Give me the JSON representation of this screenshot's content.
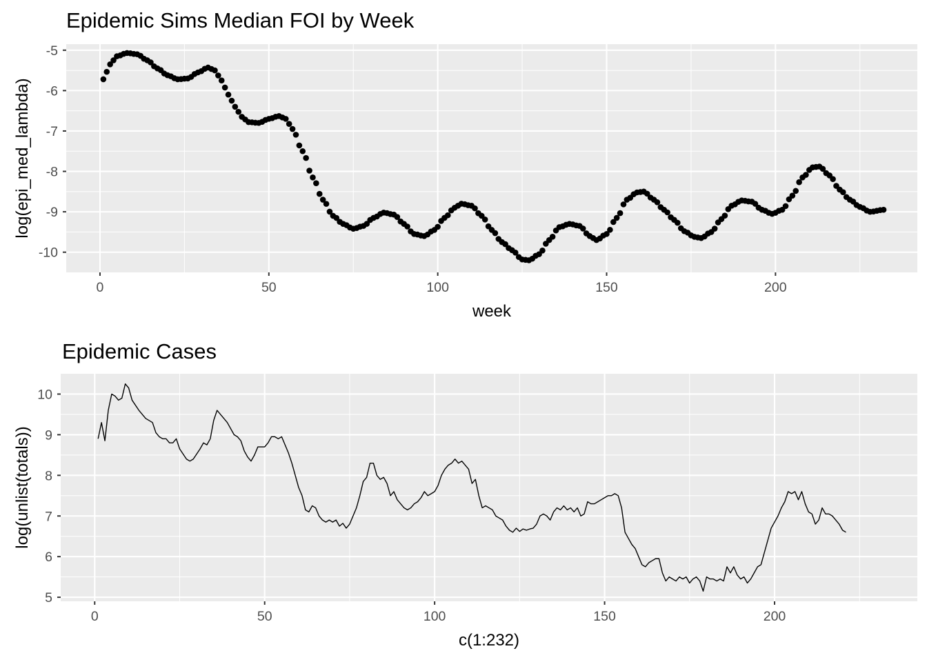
{
  "chart_data": [
    {
      "type": "scatter",
      "title": "Epidemic Sims Median FOI by Week",
      "xlabel": "week",
      "ylabel": "log(epi_med_lambda)",
      "xlim": [
        -10,
        242
      ],
      "ylim": [
        -10.5,
        -4.85
      ],
      "xticks": [
        0,
        50,
        100,
        150,
        200
      ],
      "yticks": [
        -10,
        -9,
        -8,
        -7,
        -6,
        -5
      ],
      "grid": true,
      "point_color": "#000000",
      "x_range": [
        1,
        232
      ],
      "keyframes": [
        [
          1,
          -5.72
        ],
        [
          3,
          -5.35
        ],
        [
          5,
          -5.15
        ],
        [
          8,
          -5.07
        ],
        [
          11,
          -5.1
        ],
        [
          14,
          -5.25
        ],
        [
          17,
          -5.45
        ],
        [
          20,
          -5.62
        ],
        [
          23,
          -5.72
        ],
        [
          26,
          -5.7
        ],
        [
          29,
          -5.55
        ],
        [
          32,
          -5.43
        ],
        [
          34,
          -5.5
        ],
        [
          36,
          -5.75
        ],
        [
          38,
          -6.1
        ],
        [
          40,
          -6.4
        ],
        [
          42,
          -6.65
        ],
        [
          44,
          -6.78
        ],
        [
          47,
          -6.8
        ],
        [
          50,
          -6.7
        ],
        [
          53,
          -6.63
        ],
        [
          55,
          -6.7
        ],
        [
          57,
          -6.95
        ],
        [
          60,
          -7.5
        ],
        [
          63,
          -8.15
        ],
        [
          66,
          -8.7
        ],
        [
          69,
          -9.1
        ],
        [
          72,
          -9.3
        ],
        [
          75,
          -9.42
        ],
        [
          78,
          -9.35
        ],
        [
          81,
          -9.15
        ],
        [
          84,
          -9.02
        ],
        [
          87,
          -9.07
        ],
        [
          90,
          -9.3
        ],
        [
          93,
          -9.55
        ],
        [
          96,
          -9.6
        ],
        [
          99,
          -9.45
        ],
        [
          102,
          -9.15
        ],
        [
          105,
          -8.9
        ],
        [
          107,
          -8.8
        ],
        [
          110,
          -8.85
        ],
        [
          113,
          -9.1
        ],
        [
          116,
          -9.45
        ],
        [
          119,
          -9.75
        ],
        [
          122,
          -9.95
        ],
        [
          125,
          -10.18
        ],
        [
          127,
          -10.2
        ],
        [
          130,
          -10.05
        ],
        [
          133,
          -9.7
        ],
        [
          136,
          -9.38
        ],
        [
          139,
          -9.3
        ],
        [
          142,
          -9.35
        ],
        [
          145,
          -9.6
        ],
        [
          147,
          -9.7
        ],
        [
          150,
          -9.55
        ],
        [
          153,
          -9.15
        ],
        [
          156,
          -8.7
        ],
        [
          159,
          -8.52
        ],
        [
          161,
          -8.5
        ],
        [
          164,
          -8.7
        ],
        [
          167,
          -8.95
        ],
        [
          170,
          -9.2
        ],
        [
          173,
          -9.48
        ],
        [
          176,
          -9.62
        ],
        [
          178,
          -9.65
        ],
        [
          181,
          -9.5
        ],
        [
          184,
          -9.18
        ],
        [
          187,
          -8.85
        ],
        [
          190,
          -8.72
        ],
        [
          193,
          -8.75
        ],
        [
          196,
          -8.95
        ],
        [
          199,
          -9.05
        ],
        [
          202,
          -8.95
        ],
        [
          205,
          -8.6
        ],
        [
          208,
          -8.15
        ],
        [
          211,
          -7.9
        ],
        [
          213,
          -7.88
        ],
        [
          216,
          -8.1
        ],
        [
          219,
          -8.45
        ],
        [
          222,
          -8.7
        ],
        [
          225,
          -8.88
        ],
        [
          228,
          -9.0
        ],
        [
          232,
          -8.95
        ]
      ]
    },
    {
      "type": "line",
      "title": "Epidemic Cases",
      "xlabel": "c(1:232)",
      "ylabel": "log(unlist(totals))",
      "xlim": [
        -10,
        242
      ],
      "ylim": [
        4.9,
        10.5
      ],
      "xticks": [
        0,
        50,
        100,
        150,
        200
      ],
      "yticks": [
        5,
        6,
        7,
        8,
        9,
        10
      ],
      "grid": true,
      "line_color": "#000000",
      "points": [
        [
          1,
          8.9
        ],
        [
          2,
          9.3
        ],
        [
          3,
          8.85
        ],
        [
          4,
          9.6
        ],
        [
          5,
          10.0
        ],
        [
          6,
          9.95
        ],
        [
          7,
          9.85
        ],
        [
          8,
          9.9
        ],
        [
          9,
          10.25
        ],
        [
          10,
          10.15
        ],
        [
          11,
          9.85
        ],
        [
          13,
          9.6
        ],
        [
          15,
          9.4
        ],
        [
          17,
          9.3
        ],
        [
          18,
          9.05
        ],
        [
          19,
          8.95
        ],
        [
          20,
          8.9
        ],
        [
          21,
          8.9
        ],
        [
          22,
          8.8
        ],
        [
          23,
          8.8
        ],
        [
          24,
          8.9
        ],
        [
          25,
          8.65
        ],
        [
          27,
          8.4
        ],
        [
          28,
          8.35
        ],
        [
          29,
          8.4
        ],
        [
          31,
          8.65
        ],
        [
          32,
          8.8
        ],
        [
          33,
          8.75
        ],
        [
          34,
          8.9
        ],
        [
          35,
          9.35
        ],
        [
          36,
          9.6
        ],
        [
          37,
          9.5
        ],
        [
          38,
          9.4
        ],
        [
          39,
          9.3
        ],
        [
          40,
          9.15
        ],
        [
          41,
          9.0
        ],
        [
          42,
          8.95
        ],
        [
          43,
          8.85
        ],
        [
          44,
          8.6
        ],
        [
          45,
          8.45
        ],
        [
          46,
          8.35
        ],
        [
          47,
          8.5
        ],
        [
          48,
          8.7
        ],
        [
          49,
          8.7
        ],
        [
          50,
          8.7
        ],
        [
          51,
          8.8
        ],
        [
          52,
          8.95
        ],
        [
          53,
          8.95
        ],
        [
          54,
          8.9
        ],
        [
          55,
          8.95
        ],
        [
          56,
          8.75
        ],
        [
          57,
          8.55
        ],
        [
          58,
          8.3
        ],
        [
          59,
          8.0
        ],
        [
          60,
          7.7
        ],
        [
          61,
          7.5
        ],
        [
          62,
          7.15
        ],
        [
          63,
          7.1
        ],
        [
          64,
          7.25
        ],
        [
          65,
          7.2
        ],
        [
          66,
          7.0
        ],
        [
          67,
          6.9
        ],
        [
          68,
          6.85
        ],
        [
          69,
          6.9
        ],
        [
          70,
          6.85
        ],
        [
          71,
          6.9
        ],
        [
          72,
          6.75
        ],
        [
          73,
          6.82
        ],
        [
          74,
          6.7
        ],
        [
          75,
          6.8
        ],
        [
          76,
          7.0
        ],
        [
          77,
          7.2
        ],
        [
          78,
          7.5
        ],
        [
          79,
          7.85
        ],
        [
          80,
          7.95
        ],
        [
          81,
          8.3
        ],
        [
          82,
          8.3
        ],
        [
          83,
          8.0
        ],
        [
          84,
          7.9
        ],
        [
          85,
          7.95
        ],
        [
          86,
          7.8
        ],
        [
          87,
          7.5
        ],
        [
          88,
          7.6
        ],
        [
          89,
          7.4
        ],
        [
          90,
          7.3
        ],
        [
          91,
          7.2
        ],
        [
          92,
          7.15
        ],
        [
          93,
          7.2
        ],
        [
          94,
          7.3
        ],
        [
          95,
          7.35
        ],
        [
          96,
          7.45
        ],
        [
          97,
          7.6
        ],
        [
          98,
          7.5
        ],
        [
          99,
          7.55
        ],
        [
          100,
          7.6
        ],
        [
          101,
          7.75
        ],
        [
          102,
          8.0
        ],
        [
          103,
          8.15
        ],
        [
          104,
          8.25
        ],
        [
          105,
          8.3
        ],
        [
          106,
          8.4
        ],
        [
          107,
          8.3
        ],
        [
          108,
          8.35
        ],
        [
          109,
          8.25
        ],
        [
          110,
          8.15
        ],
        [
          111,
          7.8
        ],
        [
          112,
          7.9
        ],
        [
          113,
          7.5
        ],
        [
          114,
          7.2
        ],
        [
          115,
          7.25
        ],
        [
          116,
          7.2
        ],
        [
          117,
          7.15
        ],
        [
          118,
          7.0
        ],
        [
          119,
          6.95
        ],
        [
          120,
          6.9
        ],
        [
          121,
          6.75
        ],
        [
          122,
          6.65
        ],
        [
          123,
          6.6
        ],
        [
          124,
          6.7
        ],
        [
          125,
          6.62
        ],
        [
          126,
          6.68
        ],
        [
          127,
          6.65
        ],
        [
          128,
          6.68
        ],
        [
          129,
          6.7
        ],
        [
          130,
          6.8
        ],
        [
          131,
          7.0
        ],
        [
          132,
          7.05
        ],
        [
          133,
          7.0
        ],
        [
          134,
          6.9
        ],
        [
          135,
          7.1
        ],
        [
          136,
          7.2
        ],
        [
          137,
          7.15
        ],
        [
          138,
          7.25
        ],
        [
          139,
          7.15
        ],
        [
          140,
          7.2
        ],
        [
          141,
          7.1
        ],
        [
          142,
          7.2
        ],
        [
          143,
          7.0
        ],
        [
          144,
          7.05
        ],
        [
          145,
          7.35
        ],
        [
          146,
          7.3
        ],
        [
          147,
          7.3
        ],
        [
          148,
          7.35
        ],
        [
          149,
          7.4
        ],
        [
          150,
          7.45
        ],
        [
          151,
          7.5
        ],
        [
          152,
          7.5
        ],
        [
          153,
          7.55
        ],
        [
          154,
          7.5
        ],
        [
          155,
          7.2
        ],
        [
          156,
          6.6
        ],
        [
          157,
          6.45
        ],
        [
          158,
          6.3
        ],
        [
          159,
          6.2
        ],
        [
          160,
          6.0
        ],
        [
          161,
          5.8
        ],
        [
          162,
          5.75
        ],
        [
          163,
          5.85
        ],
        [
          164,
          5.9
        ],
        [
          165,
          5.95
        ],
        [
          166,
          5.95
        ],
        [
          167,
          5.6
        ],
        [
          168,
          5.4
        ],
        [
          169,
          5.5
        ],
        [
          170,
          5.45
        ],
        [
          171,
          5.4
        ],
        [
          172,
          5.5
        ],
        [
          173,
          5.45
        ],
        [
          174,
          5.5
        ],
        [
          175,
          5.35
        ],
        [
          176,
          5.45
        ],
        [
          177,
          5.5
        ],
        [
          178,
          5.4
        ],
        [
          179,
          5.15
        ],
        [
          180,
          5.5
        ],
        [
          181,
          5.45
        ],
        [
          182,
          5.45
        ],
        [
          183,
          5.4
        ],
        [
          184,
          5.45
        ],
        [
          185,
          5.4
        ],
        [
          186,
          5.75
        ],
        [
          187,
          5.6
        ],
        [
          188,
          5.75
        ],
        [
          189,
          5.55
        ],
        [
          190,
          5.45
        ],
        [
          191,
          5.5
        ],
        [
          192,
          5.35
        ],
        [
          193,
          5.45
        ],
        [
          194,
          5.6
        ],
        [
          195,
          5.75
        ],
        [
          196,
          5.8
        ],
        [
          197,
          6.1
        ],
        [
          198,
          6.4
        ],
        [
          199,
          6.7
        ],
        [
          200,
          6.85
        ],
        [
          201,
          7.0
        ],
        [
          202,
          7.2
        ],
        [
          203,
          7.35
        ],
        [
          204,
          7.6
        ],
        [
          205,
          7.55
        ],
        [
          206,
          7.6
        ],
        [
          207,
          7.4
        ],
        [
          208,
          7.6
        ],
        [
          209,
          7.3
        ],
        [
          210,
          7.1
        ],
        [
          211,
          7.05
        ],
        [
          212,
          6.8
        ],
        [
          213,
          6.9
        ],
        [
          214,
          7.2
        ],
        [
          215,
          7.05
        ],
        [
          216,
          7.05
        ],
        [
          217,
          7.0
        ],
        [
          218,
          6.9
        ],
        [
          219,
          6.8
        ],
        [
          220,
          6.65
        ],
        [
          221,
          6.6
        ]
      ]
    }
  ]
}
